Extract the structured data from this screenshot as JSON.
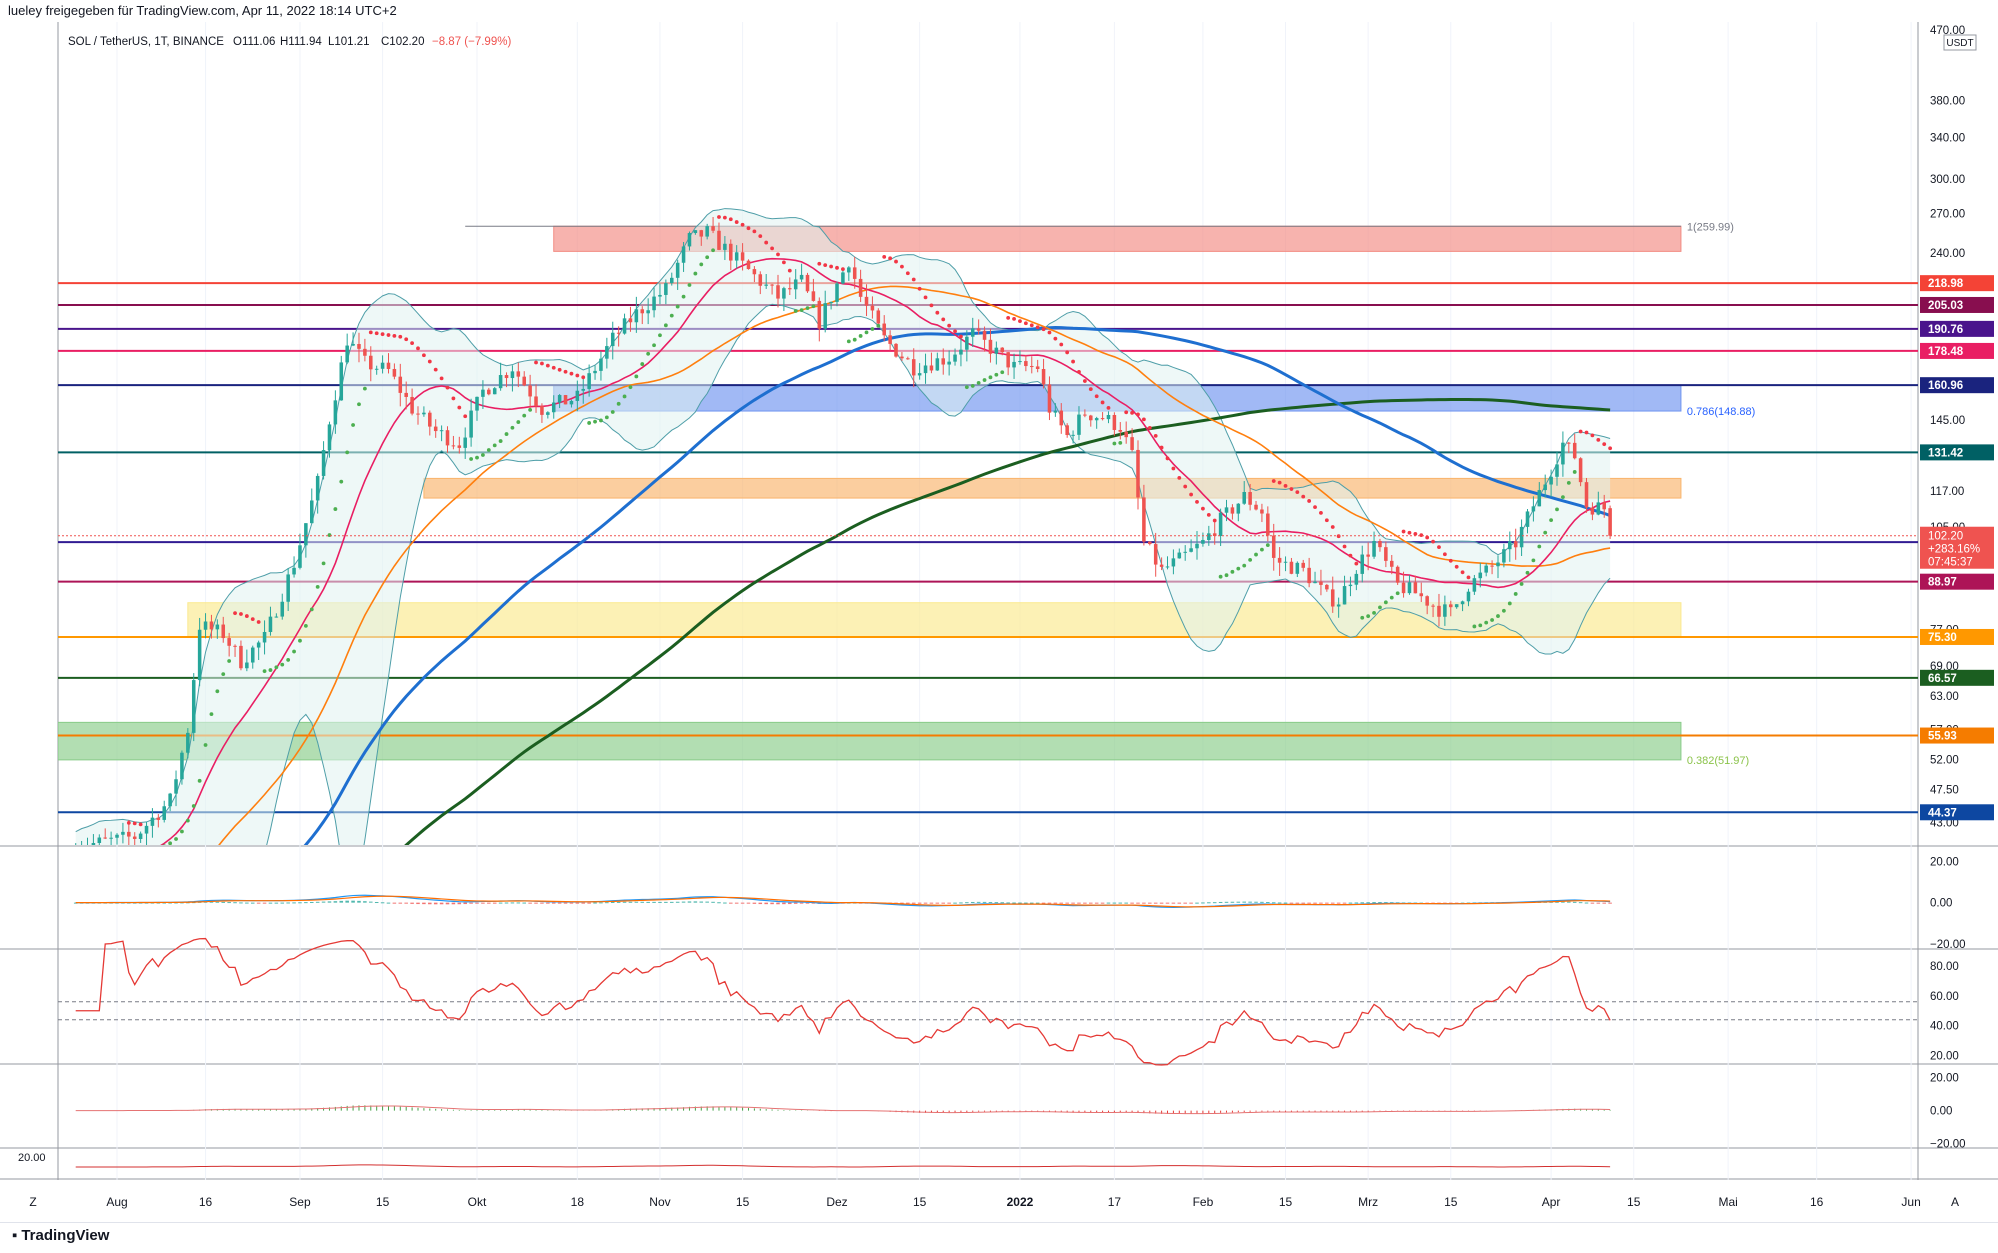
{
  "header": {
    "share_text": "lueley freigegeben für TradingView.com, Apr 11, 2022 18:14 UTC+2",
    "symbol_line": "SOL / TetherUS, 1T, BINANCE",
    "ohlc": {
      "o": "O111.06",
      "h": "H111.94",
      "l": "L101.21",
      "c": "C102.20",
      "chg": "−8.87 (−7.99%)"
    }
  },
  "footer": {
    "brand": "TradingView",
    "zoom_label": "Z",
    "settings_label": "A"
  },
  "colors": {
    "up": "#26a69a",
    "down": "#ef5350",
    "ma20": "#e91e63",
    "ma50": "#ff7f0e",
    "ma100": "#1e6fd0",
    "ma200": "#1b5e20",
    "bb": "#4e9ea8"
  },
  "chart_data": [
    {
      "type": "candlestick",
      "title": "SOL / TetherUS, 1T, BINANCE",
      "y_scale": "log",
      "ylim": [
        40.2,
        470
      ],
      "price_ticks": [
        "470.00",
        "380.00",
        "340.00",
        "300.00",
        "270.00",
        "240.00",
        "145.00",
        "117.00",
        "105.00",
        "77.00",
        "69.00",
        "63.00",
        "57.00",
        "52.00",
        "47.50",
        "43.00"
      ],
      "currency_label": "USDT",
      "time_ticks": [
        "Aug",
        "16",
        "Sep",
        "15",
        "Okt",
        "18",
        "Nov",
        "15",
        "Dez",
        "15",
        "2022",
        "17",
        "Feb",
        "15",
        "Mrz",
        "15",
        "Apr",
        "15",
        "Mai",
        "16",
        "Jun"
      ],
      "x_start": "2021-07-22",
      "x_end": "2022-06-02",
      "horizontal_lines": [
        {
          "price": 218.98,
          "label": "218.98",
          "color": "#f44336"
        },
        {
          "price": 205.03,
          "label": "205.03",
          "color": "#880e4f"
        },
        {
          "price": 190.76,
          "label": "190.76",
          "color": "#4a148c"
        },
        {
          "price": 178.48,
          "label": "178.48",
          "color": "#e91e63"
        },
        {
          "price": 160.96,
          "label": "160.96",
          "color": "#1a237e"
        },
        {
          "price": 131.42,
          "label": "131.42",
          "color": "#006064"
        },
        {
          "price": 100.26,
          "label": "100.26",
          "color": "#311b92"
        },
        {
          "price": 88.97,
          "label": "88.97",
          "color": "#ad1457"
        },
        {
          "price": 75.3,
          "label": "75.30",
          "color": "#ff9800"
        },
        {
          "price": 66.57,
          "label": "66.57",
          "color": "#1b5e20"
        },
        {
          "price": 55.93,
          "label": "55.93",
          "color": "#f57c00"
        },
        {
          "price": 44.37,
          "label": "44.37",
          "color": "#0d47a1"
        }
      ],
      "zones": [
        {
          "top": 260,
          "bottom": 241,
          "from": "2021-10-14",
          "to": "2022-04-23",
          "color": "#f28b82"
        },
        {
          "top": 160.96,
          "bottom": 148.88,
          "from": "2021-10-14",
          "to": "2022-04-23",
          "color": "#6e94f0"
        },
        {
          "top": 121.5,
          "bottom": 114.5,
          "from": "2021-09-22",
          "to": "2022-04-23",
          "color": "#f9b46b"
        },
        {
          "top": 83.5,
          "bottom": 75.3,
          "from": "2021-08-13",
          "to": "2022-04-23",
          "color": "#fbe98e"
        },
        {
          "top": 58.2,
          "bottom": 51.97,
          "from": "2021-07-22",
          "to": "2022-04-23",
          "color": "#88cc88"
        }
      ],
      "fib_labels": [
        {
          "price": 259.99,
          "label": "1(259.99)",
          "color": "#787b86"
        },
        {
          "price": 148.88,
          "label": "0.786(148.88)",
          "color": "#2962ff"
        },
        {
          "price": 51.97,
          "label": "0.382(51.97)",
          "color": "#8bc34a"
        }
      ],
      "last_price": {
        "value": 102.2,
        "change": "+283.16%",
        "countdown": "07:45:37"
      },
      "waypoints": [
        [
          "2021-07-25",
          40.0
        ],
        [
          "2021-08-04",
          41.2
        ],
        [
          "2021-08-10",
          46.0
        ],
        [
          "2021-08-13",
          57.0
        ],
        [
          "2021-08-15",
          78.0
        ],
        [
          "2021-08-19",
          76.0
        ],
        [
          "2021-08-22",
          70.0
        ],
        [
          "2021-08-26",
          75.0
        ],
        [
          "2021-08-31",
          94.0
        ],
        [
          "2021-09-04",
          120.0
        ],
        [
          "2021-09-06",
          145.0
        ],
        [
          "2021-09-09",
          185.0
        ],
        [
          "2021-09-12",
          172.0
        ],
        [
          "2021-09-16",
          168.0
        ],
        [
          "2021-09-20",
          150.0
        ],
        [
          "2021-09-24",
          140.0
        ],
        [
          "2021-09-28",
          135.0
        ],
        [
          "2021-10-02",
          158.0
        ],
        [
          "2021-10-07",
          170.0
        ],
        [
          "2021-10-12",
          150.0
        ],
        [
          "2021-10-18",
          155.0
        ],
        [
          "2021-10-24",
          185.0
        ],
        [
          "2021-10-28",
          200.0
        ],
        [
          "2021-11-02",
          215.0
        ],
        [
          "2021-11-06",
          250.0
        ],
        [
          "2021-11-09",
          255.0
        ],
        [
          "2021-11-14",
          235.0
        ],
        [
          "2021-11-18",
          220.0
        ],
        [
          "2021-11-21",
          210.0
        ],
        [
          "2021-11-25",
          220.0
        ],
        [
          "2021-11-28",
          195.0
        ],
        [
          "2021-12-03",
          235.0
        ],
        [
          "2021-12-05",
          210.0
        ],
        [
          "2021-12-09",
          185.0
        ],
        [
          "2021-12-14",
          170.0
        ],
        [
          "2021-12-20",
          175.0
        ],
        [
          "2021-12-24",
          188.0
        ],
        [
          "2021-12-27",
          180.0
        ],
        [
          "2021-12-31",
          170.0
        ],
        [
          "2022-01-04",
          170.0
        ],
        [
          "2022-01-06",
          150.0
        ],
        [
          "2022-01-09",
          138.0
        ],
        [
          "2022-01-12",
          148.0
        ],
        [
          "2022-01-15",
          146.0
        ],
        [
          "2022-01-18",
          142.0
        ],
        [
          "2022-01-20",
          130.0
        ],
        [
          "2022-01-22",
          100.0
        ],
        [
          "2022-01-25",
          92.0
        ],
        [
          "2022-01-28",
          95.0
        ],
        [
          "2022-02-01",
          100.0
        ],
        [
          "2022-02-04",
          107.0
        ],
        [
          "2022-02-08",
          115.0
        ],
        [
          "2022-02-11",
          110.0
        ],
        [
          "2022-02-13",
          95.0
        ],
        [
          "2022-02-18",
          92.0
        ],
        [
          "2022-02-22",
          85.0
        ],
        [
          "2022-02-24",
          84.0
        ],
        [
          "2022-02-27",
          93.0
        ],
        [
          "2022-03-02",
          100.0
        ],
        [
          "2022-03-06",
          88.0
        ],
        [
          "2022-03-09",
          86.0
        ],
        [
          "2022-03-13",
          82.0
        ],
        [
          "2022-03-15",
          81.0
        ],
        [
          "2022-03-18",
          88.0
        ],
        [
          "2022-03-22",
          93.0
        ],
        [
          "2022-03-26",
          100.0
        ],
        [
          "2022-03-29",
          112.0
        ],
        [
          "2022-04-01",
          125.0
        ],
        [
          "2022-04-03",
          135.0
        ],
        [
          "2022-04-05",
          130.0
        ],
        [
          "2022-04-07",
          112.0
        ],
        [
          "2022-04-10",
          111.0
        ],
        [
          "2022-04-11",
          102.2
        ]
      ]
    },
    {
      "type": "macd",
      "ylim": [
        -22,
        27
      ],
      "ticks": [
        "20.00",
        "0.00",
        "−20.00"
      ]
    },
    {
      "type": "rsi",
      "ylim": [
        15,
        90
      ],
      "ticks": [
        "80.00",
        "60.00",
        "40.00",
        "20.00"
      ],
      "bands": [
        56,
        44
      ]
    },
    {
      "type": "histogram-oscillator",
      "ylim": [
        -22,
        27
      ],
      "ticks": [
        "20.00",
        "0.00",
        "−20.00"
      ]
    },
    {
      "type": "line",
      "ticks": [
        "20.00"
      ]
    }
  ]
}
